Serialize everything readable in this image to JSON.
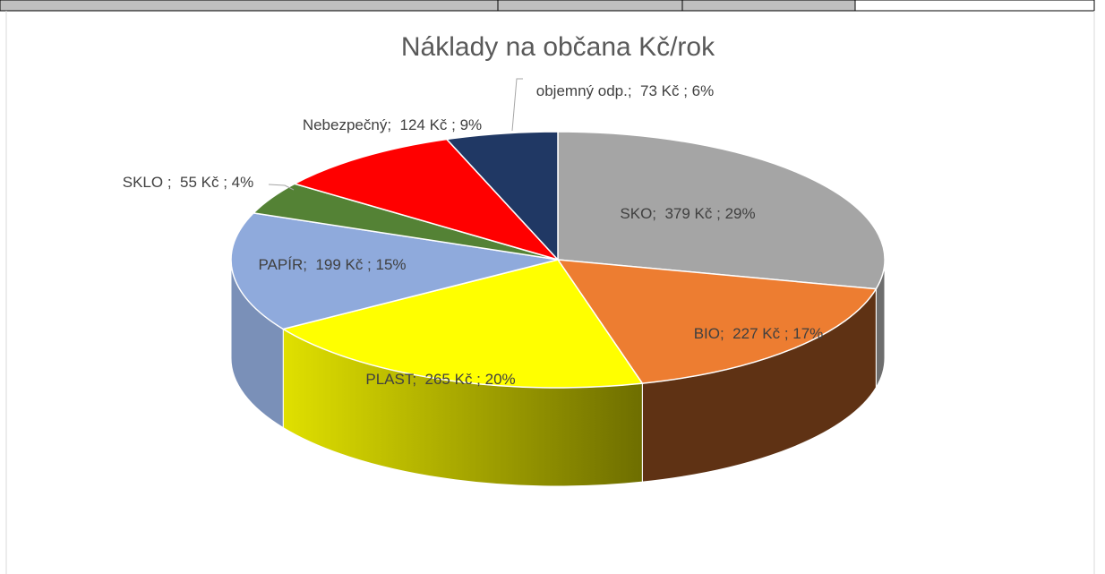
{
  "chart_data": {
    "type": "pie",
    "title": "Náklady na občana Kč/rok",
    "categories": [
      "SKO",
      "BIO",
      "PLAST",
      "PAPÍR",
      "SKLO ",
      "Nebezpečný",
      "objemný odp."
    ],
    "values": [
      379,
      227,
      265,
      199,
      55,
      124,
      73
    ],
    "value_labels": [
      ";  379 Kč ; 29%",
      ";  227 Kč ; 17%",
      ";  265 Kč ; 20%",
      ";  199 Kč ; 15%",
      ";  55 Kč ; 4%",
      ";  124 Kč ; 9%",
      ";  73 Kč ; 6%"
    ],
    "colors": [
      "#a5a5a5",
      "#ed7d31",
      "#ffff00",
      "#8faadc",
      "#548235",
      "#ff0000",
      "#203864"
    ]
  }
}
